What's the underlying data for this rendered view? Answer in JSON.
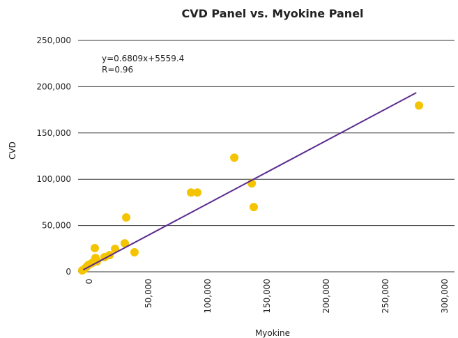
{
  "chart_data": {
    "type": "scatter",
    "title": "CVD Panel vs. Myokine Panel",
    "xlabel": "Myokine",
    "ylabel": "CVD",
    "annotations": [
      "y=0.6809x+5559.4",
      "R=0.96"
    ],
    "series": [
      {
        "name": "CVD",
        "color": "#f5c400",
        "x": [
          -5900,
          -4100,
          -2400,
          -600,
          1800,
          3500,
          5300,
          5300,
          4700,
          6500,
          12900,
          17100,
          21800,
          30000,
          31200,
          38200,
          85900,
          91200,
          122400,
          137100,
          138800,
          278200
        ],
        "values": [
          1500,
          3000,
          5300,
          7500,
          9000,
          10500,
          12000,
          15000,
          25600,
          11300,
          15800,
          18000,
          24800,
          30800,
          58700,
          21100,
          85700,
          85700,
          123300,
          95500,
          69900,
          179700
        ]
      }
    ],
    "trendline": {
      "slope": 0.6809,
      "intercept": 5559.4,
      "x": [
        -5000,
        276000
      ],
      "color": "#5b2c8f"
    },
    "xlim": [
      -9400,
      308200
    ],
    "xticks": [
      0,
      {
        "value": 50000,
        "label": "50,000"
      },
      {
        "value": 100000,
        "label": "100,000"
      },
      {
        "value": 150000,
        "label": "150,000"
      },
      {
        "value": 200000,
        "label": "200,000"
      },
      {
        "value": 250000,
        "label": "250,000"
      },
      {
        "value": 300000,
        "label": "300,000"
      }
    ],
    "ylim": [
      0,
      250000
    ],
    "yticks": [
      0,
      {
        "value": 50000,
        "label": "50,000"
      },
      {
        "value": 100000,
        "label": "100,000"
      },
      {
        "value": 150000,
        "label": "150,000"
      },
      {
        "value": 200000,
        "label": "200,000"
      },
      {
        "value": 250000,
        "label": "250,000"
      }
    ],
    "grid": true
  }
}
